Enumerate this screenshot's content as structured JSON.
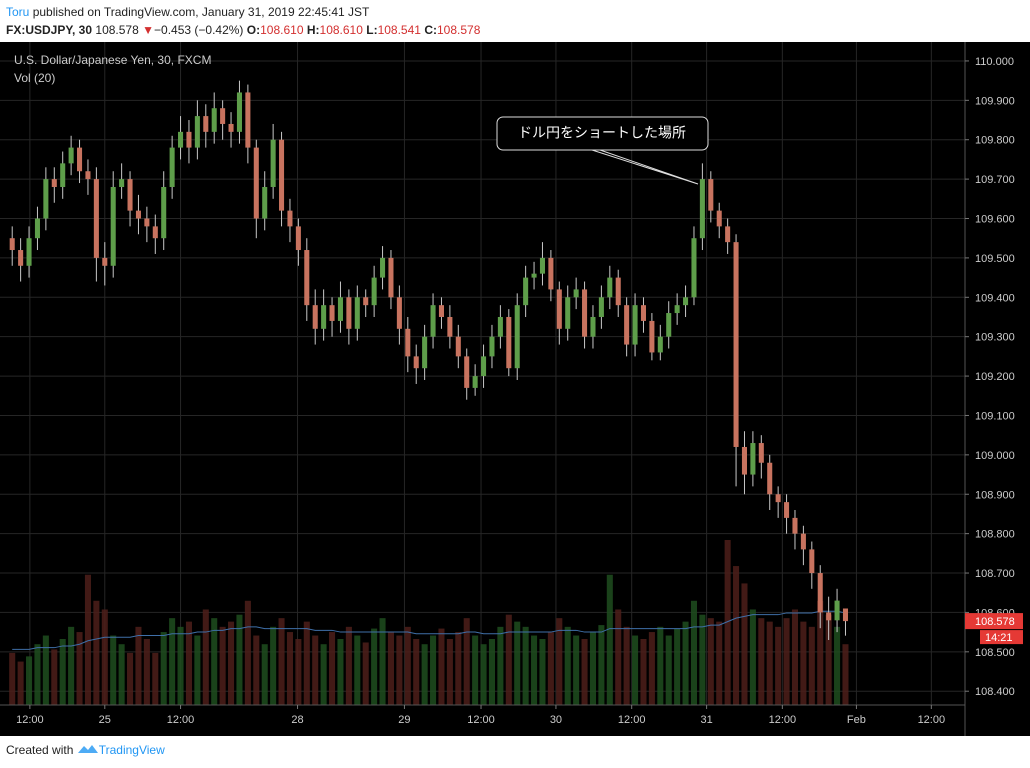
{
  "header": {
    "user": "Toru",
    "published": "published on TradingView.com, January 31, 2019 22:45:41 JST",
    "symbol": "FX:USDJPY, 30",
    "last": "108.578",
    "arrow": "▼",
    "change": "−0.453 (−0.42%)",
    "o_label": "O:",
    "o_value": "108.610",
    "h_label": "H:",
    "h_value": "108.610",
    "l_label": "L:",
    "l_value": "108.541",
    "c_label": "C:",
    "c_value": "108.578"
  },
  "footer": {
    "created": "Created with",
    "brand": "TradingView"
  },
  "chart_data": {
    "type": "candlestick",
    "title": "U.S. Dollar/Japanese Yen, 30, FXCM",
    "volume_title": "Vol (20)",
    "annotation": "ドル円をショートした場所",
    "last_price_label": "108.578",
    "countdown": "14:21",
    "up_color": "#5e9e4a",
    "down_color": "#c8735f",
    "volume_ma_color": "#3f6fa8",
    "grid": true,
    "xlim": [
      -0.95,
      113.7
    ],
    "xticks": [
      {
        "value": 2.6,
        "label": "12:00"
      },
      {
        "value": 11.5,
        "label": "25"
      },
      {
        "value": 20.5,
        "label": "12:00"
      },
      {
        "value": 34.4,
        "label": "28"
      },
      {
        "value": 47.1,
        "label": "29"
      },
      {
        "value": 56.2,
        "label": "12:00"
      },
      {
        "value": 65.1,
        "label": "30"
      },
      {
        "value": 74.1,
        "label": "12:00"
      },
      {
        "value": 83.0,
        "label": "31"
      },
      {
        "value": 92.0,
        "label": "12:00"
      },
      {
        "value": 100.8,
        "label": "Feb"
      },
      {
        "value": 109.7,
        "label": "12:00"
      }
    ],
    "ylim": [
      108.365,
      110.043
    ],
    "yticks": [
      {
        "value": 108.4,
        "label": "108.400"
      },
      {
        "value": 108.5,
        "label": "108.500"
      },
      {
        "value": 108.6,
        "label": "108.600"
      },
      {
        "value": 108.7,
        "label": "108.700"
      },
      {
        "value": 108.8,
        "label": "108.800"
      },
      {
        "value": 108.9,
        "label": "108.900"
      },
      {
        "value": 109,
        "label": "109.000"
      },
      {
        "value": 109.1,
        "label": "109.100"
      },
      {
        "value": 109.2,
        "label": "109.200"
      },
      {
        "value": 109.3,
        "label": "109.300"
      },
      {
        "value": 109.4,
        "label": "109.400"
      },
      {
        "value": 109.5,
        "label": "109.500"
      },
      {
        "value": 109.6,
        "label": "109.600"
      },
      {
        "value": 109.7,
        "label": "109.700"
      },
      {
        "value": 109.8,
        "label": "109.800"
      },
      {
        "value": 109.9,
        "label": "109.900"
      },
      {
        "value": 110,
        "label": "110.000"
      }
    ],
    "open": [
      109.55,
      109.52,
      109.48,
      109.55,
      109.6,
      109.7,
      109.68,
      109.74,
      109.78,
      109.72,
      109.7,
      109.5,
      109.48,
      109.68,
      109.7,
      109.62,
      109.6,
      109.58,
      109.55,
      109.68,
      109.78,
      109.82,
      109.78,
      109.86,
      109.82,
      109.88,
      109.84,
      109.82,
      109.92,
      109.78,
      109.6,
      109.68,
      109.8,
      109.62,
      109.58,
      109.52,
      109.38,
      109.32,
      109.38,
      109.34,
      109.4,
      109.32,
      109.4,
      109.38,
      109.45,
      109.5,
      109.4,
      109.32,
      109.25,
      109.22,
      109.3,
      109.38,
      109.35,
      109.3,
      109.25,
      109.17,
      109.2,
      109.25,
      109.3,
      109.35,
      109.22,
      109.38,
      109.45,
      109.46,
      109.5,
      109.42,
      109.32,
      109.4,
      109.42,
      109.3,
      109.35,
      109.4,
      109.45,
      109.38,
      109.28,
      109.38,
      109.34,
      109.26,
      109.3,
      109.36,
      109.38,
      109.4,
      109.55,
      109.7,
      109.62,
      109.58,
      109.54,
      109.02,
      108.95,
      109.03,
      108.98,
      108.9,
      108.88,
      108.84,
      108.8,
      108.76,
      108.7,
      108.6,
      108.58,
      108.61
    ],
    "high": [
      109.58,
      109.55,
      109.58,
      109.63,
      109.73,
      109.73,
      109.77,
      109.81,
      109.8,
      109.75,
      109.73,
      109.54,
      109.72,
      109.74,
      109.72,
      109.66,
      109.63,
      109.61,
      109.72,
      109.81,
      109.86,
      109.85,
      109.9,
      109.89,
      109.92,
      109.9,
      109.87,
      109.95,
      109.94,
      109.8,
      109.72,
      109.84,
      109.82,
      109.65,
      109.6,
      109.55,
      109.42,
      109.42,
      109.4,
      109.44,
      109.42,
      109.43,
      109.42,
      109.48,
      109.53,
      109.52,
      109.43,
      109.35,
      109.28,
      109.33,
      109.41,
      109.4,
      109.38,
      109.33,
      109.27,
      109.23,
      109.28,
      109.33,
      109.38,
      109.37,
      109.41,
      109.48,
      109.49,
      109.54,
      109.52,
      109.44,
      109.43,
      109.45,
      109.44,
      109.38,
      109.43,
      109.48,
      109.47,
      109.4,
      109.41,
      109.4,
      109.36,
      109.33,
      109.39,
      109.41,
      109.43,
      109.58,
      109.74,
      109.72,
      109.64,
      109.6,
      109.56,
      109.06,
      109.06,
      109.05,
      109.0,
      108.92,
      108.9,
      108.86,
      108.82,
      108.78,
      108.72,
      108.64,
      108.66,
      108.61
    ],
    "low": [
      109.48,
      109.44,
      109.45,
      109.52,
      109.57,
      109.64,
      109.65,
      109.71,
      109.69,
      109.66,
      109.44,
      109.43,
      109.45,
      109.65,
      109.58,
      109.56,
      109.54,
      109.51,
      109.52,
      109.65,
      109.75,
      109.74,
      109.75,
      109.78,
      109.79,
      109.8,
      109.78,
      109.79,
      109.74,
      109.55,
      109.57,
      109.65,
      109.58,
      109.54,
      109.48,
      109.34,
      109.28,
      109.29,
      109.3,
      109.31,
      109.28,
      109.29,
      109.35,
      109.35,
      109.42,
      109.37,
      109.28,
      109.21,
      109.18,
      109.19,
      109.27,
      109.32,
      109.27,
      109.22,
      109.14,
      109.15,
      109.17,
      109.22,
      109.27,
      109.2,
      109.19,
      109.35,
      109.42,
      109.43,
      109.39,
      109.28,
      109.29,
      109.37,
      109.27,
      109.27,
      109.32,
      109.37,
      109.35,
      109.25,
      109.25,
      109.31,
      109.24,
      109.24,
      109.27,
      109.33,
      109.35,
      109.38,
      109.52,
      109.59,
      109.55,
      109.51,
      108.92,
      108.9,
      108.92,
      108.94,
      108.86,
      108.84,
      108.8,
      108.76,
      108.72,
      108.66,
      108.56,
      108.53,
      108.55,
      108.541
    ],
    "close": [
      109.52,
      109.48,
      109.55,
      109.6,
      109.7,
      109.68,
      109.74,
      109.78,
      109.72,
      109.7,
      109.5,
      109.48,
      109.68,
      109.7,
      109.62,
      109.6,
      109.58,
      109.55,
      109.68,
      109.78,
      109.82,
      109.78,
      109.86,
      109.82,
      109.88,
      109.84,
      109.82,
      109.92,
      109.78,
      109.6,
      109.68,
      109.8,
      109.62,
      109.58,
      109.52,
      109.38,
      109.32,
      109.38,
      109.34,
      109.4,
      109.32,
      109.4,
      109.38,
      109.45,
      109.5,
      109.4,
      109.32,
      109.25,
      109.22,
      109.3,
      109.38,
      109.35,
      109.3,
      109.25,
      109.17,
      109.2,
      109.25,
      109.3,
      109.35,
      109.22,
      109.38,
      109.45,
      109.46,
      109.5,
      109.42,
      109.32,
      109.4,
      109.42,
      109.3,
      109.35,
      109.4,
      109.45,
      109.38,
      109.28,
      109.38,
      109.34,
      109.26,
      109.3,
      109.36,
      109.38,
      109.4,
      109.55,
      109.7,
      109.62,
      109.58,
      109.54,
      109.02,
      108.95,
      109.03,
      108.98,
      108.9,
      108.88,
      108.84,
      108.8,
      108.76,
      108.7,
      108.6,
      108.58,
      108.63,
      108.578
    ],
    "volume": [
      30,
      25,
      28,
      35,
      40,
      32,
      38,
      45,
      42,
      75,
      60,
      55,
      40,
      35,
      30,
      45,
      38,
      30,
      42,
      50,
      45,
      48,
      40,
      55,
      50,
      45,
      48,
      52,
      60,
      40,
      35,
      45,
      50,
      42,
      38,
      48,
      40,
      35,
      42,
      38,
      45,
      40,
      36,
      44,
      50,
      42,
      40,
      45,
      38,
      35,
      40,
      44,
      38,
      42,
      50,
      40,
      35,
      38,
      45,
      52,
      48,
      45,
      40,
      38,
      42,
      50,
      45,
      40,
      38,
      42,
      46,
      75,
      55,
      45,
      40,
      38,
      42,
      45,
      40,
      44,
      48,
      60,
      52,
      50,
      48,
      95,
      80,
      70,
      55,
      50,
      48,
      45,
      50,
      55,
      48,
      45,
      60,
      52,
      45,
      35
    ],
    "volume_ma": [
      32,
      32,
      32,
      33,
      33,
      33,
      34,
      34,
      35,
      37,
      38,
      39,
      39,
      39,
      39,
      40,
      40,
      40,
      40,
      41,
      41,
      41,
      42,
      42,
      43,
      43,
      44,
      44,
      45,
      45,
      44,
      44,
      44,
      44,
      44,
      44,
      43,
      43,
      43,
      42,
      42,
      42,
      42,
      42,
      42,
      42,
      42,
      42,
      41,
      41,
      41,
      41,
      41,
      41,
      42,
      42,
      41,
      41,
      41,
      42,
      42,
      42,
      42,
      42,
      42,
      43,
      43,
      43,
      42,
      42,
      42,
      44,
      44,
      44,
      44,
      44,
      44,
      44,
      44,
      44,
      44,
      45,
      45,
      46,
      46,
      48,
      50,
      51,
      52,
      52,
      52,
      52,
      53,
      53,
      53,
      53,
      54,
      54,
      54,
      53
    ]
  }
}
